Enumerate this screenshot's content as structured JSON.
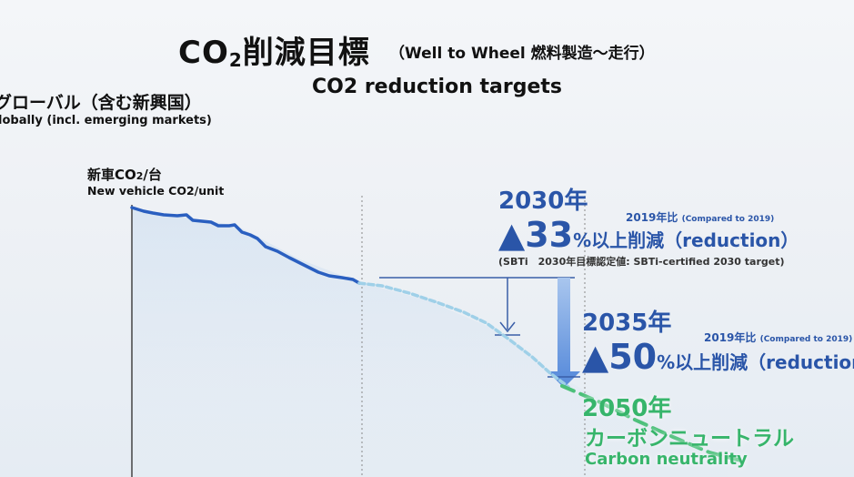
{
  "title": {
    "main_prefix": "CO",
    "main_sub": "2",
    "main_suffix": "削減目標",
    "sub": "（Well to Wheel 燃料製造～走行）",
    "en": "CO2 reduction targets"
  },
  "scope": {
    "jp": "グローバル（含む新興国）",
    "en": "lobally (incl. emerging markets)"
  },
  "metric": {
    "jp_prefix": "新車CO",
    "jp_sub": "2",
    "jp_suffix": "/台",
    "en": "New vehicle CO2/unit"
  },
  "target_2030": {
    "year": "2030年",
    "compare": "2019年比",
    "compare_en": "(Compared to 2019)",
    "mark": "▲",
    "value": "33",
    "unit": "%",
    "rest": "以上削減（reduction）",
    "note": "(SBTi　2030年目標認定値: SBTi-certified 2030 target)"
  },
  "target_2035": {
    "year": "2035年",
    "compare": "2019年比",
    "compare_en": "(Compared to 2019)",
    "mark": "▲",
    "value": "50",
    "unit": "%",
    "rest": "以上削減（reduction）"
  },
  "target_2050": {
    "year": "2050年",
    "jp": "カーボンニュートラル",
    "en": "Carbon neutrality"
  },
  "colors": {
    "actual_line": "#2a5fc0",
    "projected_line": "#9fd0e8",
    "arrow": "#6f9ee0",
    "neutral_line": "#4cc07a"
  }
}
